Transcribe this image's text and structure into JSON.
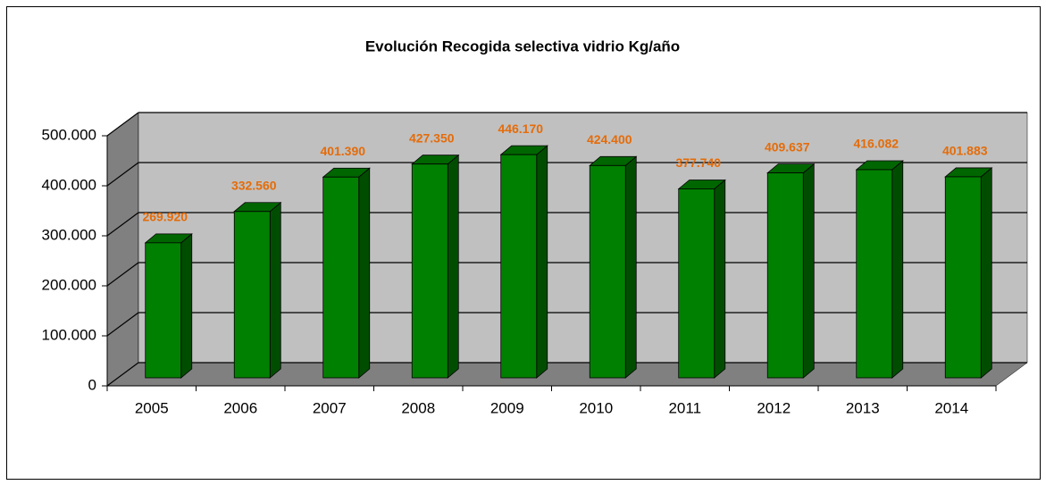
{
  "chart_data": {
    "type": "bar3d",
    "title": "Evolución Recogida selectiva vidrio Kg/año",
    "categories": [
      "2005",
      "2006",
      "2007",
      "2008",
      "2009",
      "2010",
      "2011",
      "2012",
      "2013",
      "2014"
    ],
    "values": [
      269920,
      332560,
      401390,
      427350,
      446170,
      424400,
      377740,
      409637,
      416082,
      401883
    ],
    "value_labels": [
      "269.920",
      "332.560",
      "401.390",
      "427.350",
      "446.170",
      "424.400",
      "377.740",
      "409.637",
      "416.082",
      "401.883"
    ],
    "color": "#008000",
    "label_color": "#e46c0a",
    "ylim": [
      0,
      500000
    ],
    "yticks": [
      0,
      {
        "value": 100000,
        "label": "100.000"
      },
      {
        "value": 200000,
        "label": "200.000"
      },
      {
        "value": 300000,
        "label": "300.000"
      },
      {
        "value": 400000,
        "label": "400.000"
      },
      {
        "value": 500000,
        "label": "500.000"
      }
    ],
    "grid": true
  }
}
